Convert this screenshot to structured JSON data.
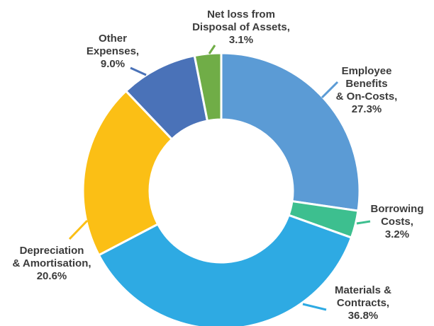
{
  "chart_data": {
    "type": "pie",
    "style": "donut",
    "title": "",
    "slices": [
      {
        "label_lines": [
          "Employee",
          "Benefits",
          "& On-Costs,"
        ],
        "pct_text": "27.3%",
        "value": 27.3,
        "color": "#5b9bd5"
      },
      {
        "label_lines": [
          "Borrowing",
          "Costs,"
        ],
        "pct_text": "3.2%",
        "value": 3.2,
        "color": "#3dbf8f"
      },
      {
        "label_lines": [
          "Materials &",
          "Contracts,"
        ],
        "pct_text": "36.8%",
        "value": 36.8,
        "color": "#2eaae3"
      },
      {
        "label_lines": [
          "Depreciation",
          "& Amortisation,"
        ],
        "pct_text": "20.6%",
        "value": 20.6,
        "color": "#fbbf15"
      },
      {
        "label_lines": [
          "Other",
          "Expenses,"
        ],
        "pct_text": "9.0%",
        "value": 9.0,
        "color": "#4a72b8"
      },
      {
        "label_lines": [
          "Net loss from",
          "Disposal of Assets,"
        ],
        "pct_text": "3.1%",
        "value": 3.1,
        "color": "#70ad47"
      }
    ],
    "legend": "none"
  }
}
